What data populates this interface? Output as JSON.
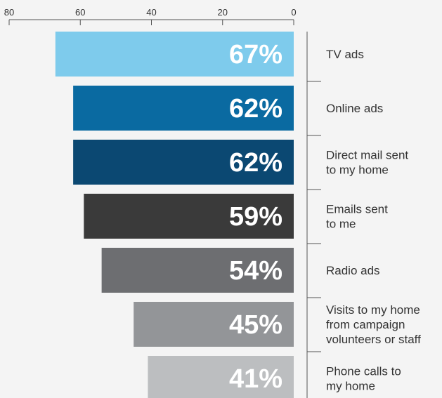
{
  "chart_data": {
    "type": "bar",
    "orientation": "horizontal",
    "x_axis_position": "top",
    "x_direction": "reversed",
    "xlim": [
      0,
      80
    ],
    "x_ticks": [
      80,
      60,
      40,
      20,
      0
    ],
    "categories": [
      "TV ads",
      "Online ads",
      "Direct mail sent to my home",
      "Emails sent to me",
      "Radio ads",
      "Visits to my home from campaign volunteers or staff",
      "Phone calls to my home"
    ],
    "category_lines": [
      [
        "TV ads"
      ],
      [
        "Online ads"
      ],
      [
        "Direct mail sent",
        "to my home"
      ],
      [
        "Emails sent",
        "to me"
      ],
      [
        "Radio ads"
      ],
      [
        "Visits to my home",
        "from campaign",
        "volunteers or staff"
      ],
      [
        "Phone calls to",
        "my home"
      ]
    ],
    "values": [
      67,
      62,
      62,
      59,
      54,
      45,
      41
    ],
    "value_labels": [
      "67%",
      "62%",
      "62%",
      "59%",
      "54%",
      "45%",
      "41%"
    ],
    "bar_colors": [
      "#7ecbec",
      "#0a6aa1",
      "#0b4872",
      "#3a3a3a",
      "#6d6e71",
      "#939598",
      "#bcbec0"
    ],
    "grid": false,
    "legend": "none"
  }
}
